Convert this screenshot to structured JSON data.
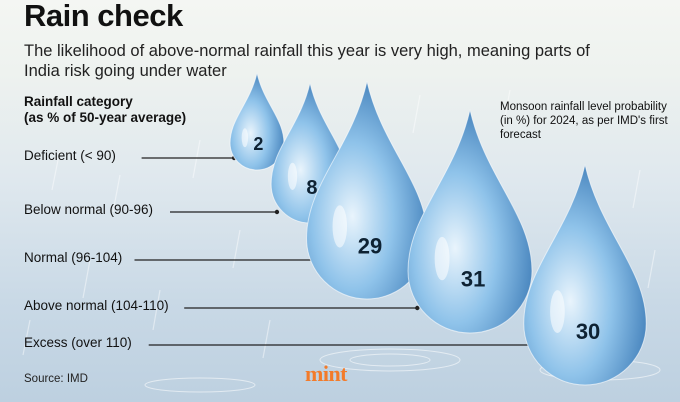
{
  "header": {
    "title": "Rain check",
    "subtitle": "The likelihood of above-normal rainfall this year is very high, meaning parts of India risk going under water"
  },
  "chart_data": {
    "type": "bar",
    "title": "Rain check",
    "xlabel": "Rainfall category (as % of 50-year average)",
    "ylabel": "Monsoon rainfall level probability (in %) for 2024, as per IMD's first forecast",
    "categories": [
      "Deficient (< 90)",
      "Below normal (90-96)",
      "Normal (96-104)",
      "Above normal (104-110)",
      "Excess (over 110)"
    ],
    "values": [
      2,
      8,
      29,
      31,
      30
    ],
    "ylim": [
      0,
      31
    ],
    "legend": "none"
  },
  "labels": {
    "axis_header_line1": "Rainfall category",
    "axis_header_line2": "(as % of 50-year average)",
    "note": "Monsoon rainfall level probability (in %) for 2024, as per IMD's first forecast"
  },
  "footer": {
    "source": "Source: IMD",
    "brand": "mint"
  },
  "colors": {
    "drop_light": "#e9f4fc",
    "drop_mid": "#8fc3ea",
    "drop_dark": "#2f6fae",
    "leader": "#222222",
    "brand": "#f37b2a"
  }
}
